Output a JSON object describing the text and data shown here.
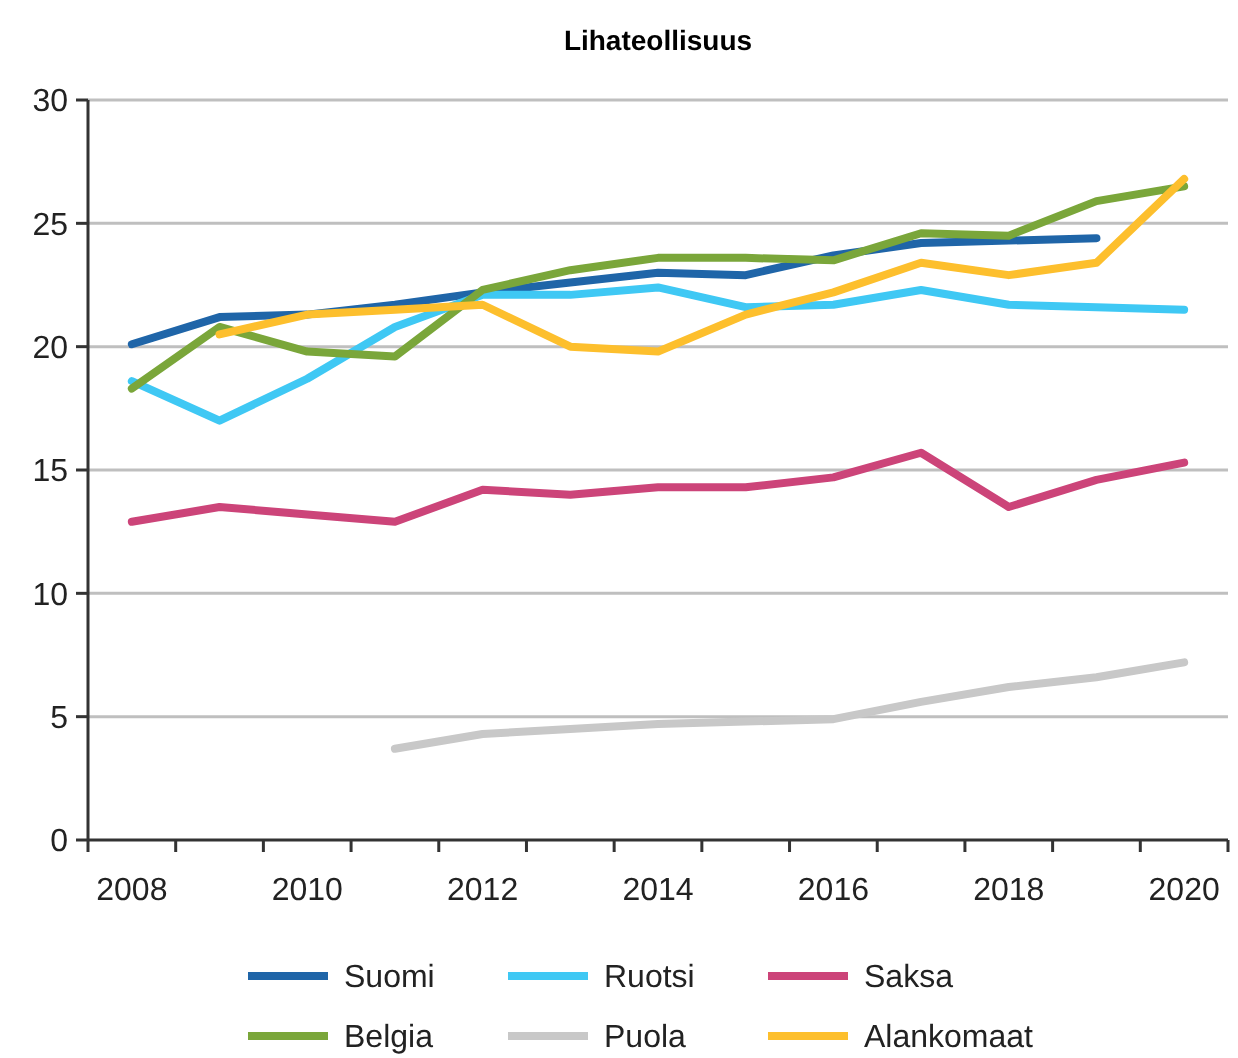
{
  "chart_data": {
    "type": "line",
    "title": "Lihateollisuus",
    "categories": [
      "2008",
      null,
      "2010",
      null,
      "2012",
      null,
      "2014",
      null,
      "2016",
      null,
      "2018",
      null,
      "2020"
    ],
    "ylim": [
      0,
      30
    ],
    "yticks": [
      0,
      5,
      10,
      15,
      20,
      25,
      30
    ],
    "grid": "y",
    "legend": "bottom",
    "marker": "none",
    "line_style": "solid",
    "series": [
      {
        "name": "Suomi",
        "color": "#1f65a8",
        "values": [
          20.1,
          21.2,
          21.3,
          21.7,
          22.2,
          22.6,
          23.0,
          22.9,
          23.7,
          24.2,
          24.3,
          24.4,
          null
        ]
      },
      {
        "name": "Ruotsi",
        "color": "#3fc8f4",
        "values": [
          18.6,
          17.0,
          18.7,
          20.8,
          22.1,
          22.1,
          22.4,
          21.6,
          21.7,
          22.3,
          21.7,
          21.6,
          21.5
        ]
      },
      {
        "name": "Saksa",
        "color": "#cc4479",
        "values": [
          12.9,
          13.5,
          13.2,
          12.9,
          14.2,
          14.0,
          14.3,
          14.3,
          14.7,
          15.7,
          13.5,
          14.6,
          15.3
        ]
      },
      {
        "name": "Belgia",
        "color": "#7aa63a",
        "values": [
          18.3,
          20.8,
          19.8,
          19.6,
          22.3,
          23.1,
          23.6,
          23.6,
          23.5,
          24.6,
          24.5,
          25.9,
          26.5
        ]
      },
      {
        "name": "Puola",
        "color": "#c8c8c8",
        "values": [
          null,
          null,
          null,
          3.7,
          4.3,
          4.5,
          4.7,
          4.8,
          4.9,
          5.6,
          6.2,
          6.6,
          7.2
        ]
      },
      {
        "name": "Alankomaat",
        "color": "#fdbf2d",
        "values": [
          null,
          20.5,
          21.3,
          21.5,
          21.7,
          20.0,
          19.8,
          21.3,
          22.2,
          23.4,
          22.9,
          23.4,
          26.8
        ]
      }
    ]
  }
}
